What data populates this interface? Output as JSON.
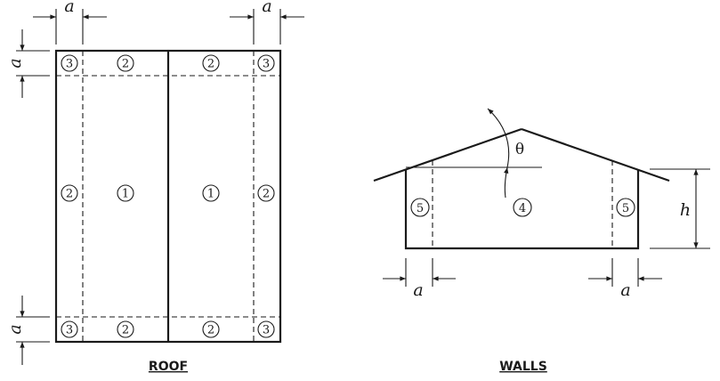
{
  "labels": {
    "dim_a": "a",
    "dim_h": "h",
    "angle": "θ",
    "roof_caption": "ROOF",
    "walls_caption": "WALLS"
  },
  "roof_zones": {
    "corner": "3",
    "edge": "2",
    "interior": "1"
  },
  "wall_zones": {
    "interior": "4",
    "end": "5"
  }
}
